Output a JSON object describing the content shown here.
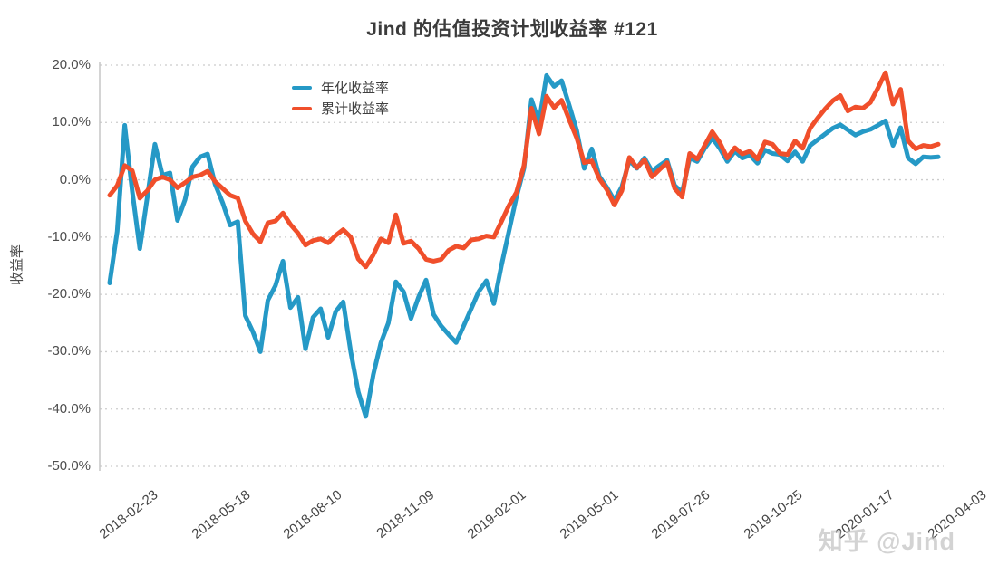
{
  "title": "Jind 的估值投资计划收益率 #121",
  "watermark": "知乎 @Jind",
  "colors": {
    "annualized_line": "#2599C6",
    "cumulative_line": "#F04F2B",
    "grid": "#cccccc",
    "axis": "#c5c5c5",
    "text": "#4d4d4d"
  },
  "chart_data": {
    "type": "line",
    "title": "Jind 的估值投资计划收益率 #121",
    "ylabel": "收益率",
    "xlabel": "",
    "ylim": [
      -50,
      20
    ],
    "grid": "dotted-horizontal",
    "legend_position": "top-left-inside",
    "x_ticks": [
      "2018-02-23",
      "2018-05-18",
      "2018-08-10",
      "2018-11-09",
      "2019-02-01",
      "2019-05-01",
      "2019-07-26",
      "2019-10-25",
      "2020-01-17",
      "2020-04-03"
    ],
    "y_ticks": [
      20,
      10,
      0,
      -10,
      -20,
      -30,
      -40,
      -50
    ],
    "y_tick_labels": [
      "20.0%",
      "10.0%",
      "0.0%",
      "-10.0%",
      "-20.0%",
      "-30.0%",
      "-40.0%",
      "-50.0%"
    ],
    "unit": "percent",
    "series": [
      {
        "name": "年化收益率",
        "color": "#2599C6",
        "values": [
          -18,
          -9,
          9.5,
          -2,
          -12,
          -3,
          6.2,
          0.8,
          1.2,
          -7.1,
          -3.5,
          2.3,
          4,
          4.5,
          -0.8,
          -4,
          -7.9,
          -7.3,
          -23.7,
          -26.5,
          -30,
          -21,
          -18.5,
          -14.2,
          -22.3,
          -20.5,
          -29.5,
          -24,
          -22.5,
          -27.5,
          -23,
          -21.3,
          -30,
          -37,
          -41.3,
          -34,
          -28.5,
          -25,
          -17.8,
          -19.5,
          -24.2,
          -20.5,
          -17.5,
          -23.5,
          -25.5,
          -27,
          -28.4,
          -25.5,
          -22.5,
          -19.5,
          -17.6,
          -21.6,
          -15,
          -9,
          -3,
          2,
          14,
          10,
          18.2,
          16.3,
          17.3,
          13,
          8.6,
          2,
          5.4,
          0.6,
          -1.3,
          -3.6,
          -1.2,
          3.4,
          2,
          3.8,
          1.5,
          2.5,
          3.4,
          -1,
          -2.2,
          3.8,
          3.2,
          5.5,
          7.3,
          5.5,
          3.2,
          5,
          3.8,
          4.3,
          2.9,
          5.2,
          4.6,
          4.4,
          3.3,
          4.9,
          3.2,
          6,
          7,
          8,
          9,
          9.6,
          8.7,
          7.8,
          8.4,
          8.8,
          9.5,
          10.3,
          6,
          9.1,
          3.8,
          2.8,
          4,
          3.9,
          4
        ]
      },
      {
        "name": "累计收益率",
        "color": "#F04F2B",
        "values": [
          -2.7,
          -1,
          2.5,
          1.6,
          -3.2,
          -1.9,
          0,
          0.5,
          0,
          -1.4,
          -0.5,
          0.5,
          0.8,
          1.5,
          -0.3,
          -1.5,
          -2.7,
          -3.2,
          -7.2,
          -9.4,
          -10.8,
          -7.5,
          -7.2,
          -5.8,
          -7.8,
          -9.3,
          -11.4,
          -10.6,
          -10.3,
          -11,
          -9.7,
          -8.7,
          -10,
          -13.8,
          -15.2,
          -13.1,
          -10.3,
          -11,
          -6.1,
          -11.1,
          -10.7,
          -12,
          -13.9,
          -14.2,
          -13.9,
          -12.3,
          -11.6,
          -11.9,
          -10.5,
          -10.3,
          -9.8,
          -10,
          -7.3,
          -4.5,
          -2.2,
          2.5,
          12.5,
          8,
          14.6,
          12.6,
          13.9,
          10.5,
          7.3,
          3,
          3.3,
          0.2,
          -1.7,
          -4.4,
          -1.9,
          3.9,
          2.1,
          3.5,
          0.5,
          1.8,
          3,
          -1.5,
          -3,
          4.6,
          3.6,
          6,
          8.4,
          6.5,
          3.8,
          5.6,
          4.5,
          5,
          3.6,
          6.6,
          6.2,
          4.6,
          4.4,
          6.8,
          5.5,
          9,
          10.8,
          12.4,
          13.8,
          14.7,
          12,
          12.7,
          12.5,
          13.5,
          16,
          18.7,
          13.2,
          15.8,
          6.8,
          5.4,
          6,
          5.8,
          6.2
        ]
      }
    ]
  }
}
